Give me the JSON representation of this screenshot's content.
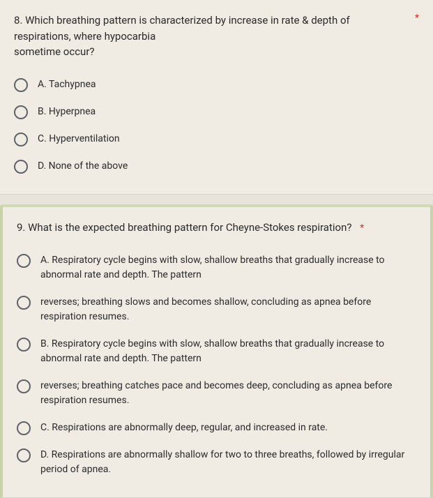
{
  "questions": [
    {
      "number": "8.",
      "text": "Which breathing pattern is characterized by increase in rate & depth of respirations, where hypocarbia",
      "text_line2": "sometime occur?",
      "required": true,
      "options": [
        "A. Tachypnea",
        "B. Hyperpnea",
        "C. Hyperventilation",
        "D. None of the above"
      ]
    },
    {
      "number": "9.",
      "text": "What is the expected breathing pattern for Cheyne-Stokes respiration?",
      "required": true,
      "options": [
        "A. Respiratory cycle begins with slow, shallow breaths that gradually increase to abnormal rate and depth. The pattern",
        "reverses; breathing slows and becomes shallow, concluding as apnea before respiration resumes.",
        "B. Respiratory cycle begins with slow, shallow breaths that gradually increase to abnormal rate and depth. The pattern",
        "reverses; breathing catches pace and becomes deep, concluding as apnea before respiration resumes.",
        "C. Respirations are abnormally deep, regular, and increased in rate.",
        "D. Respirations are abnormally shallow for two to three breaths, followed by irregular period of apnea."
      ]
    }
  ],
  "colors": {
    "background": "#e8e4dc",
    "block_bg": "#f0ece4",
    "text": "#2a2a2a",
    "radio_border": "#5f6368",
    "required": "#d93025",
    "highlight_border": "#c8d4a8"
  }
}
